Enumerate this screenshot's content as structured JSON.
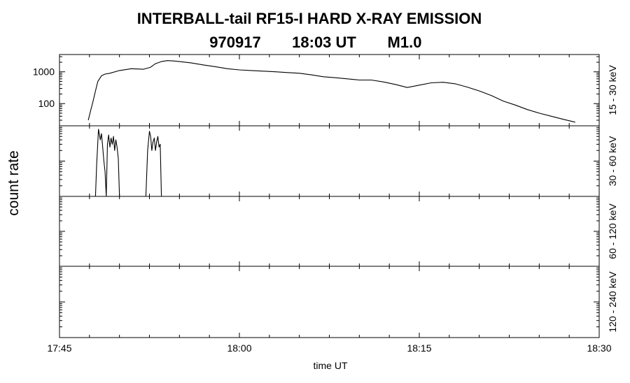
{
  "chart_data": {
    "type": "line",
    "title": "INTERBALL-tail  RF15-I  HARD  X-RAY  EMISSION",
    "subtitle": {
      "date": "970917",
      "time": "18:03 UT",
      "class": "M1.0"
    },
    "xlabel": "time UT",
    "ylabel": "count rate",
    "x_ticks": [
      "17:45",
      "18:00",
      "18:15",
      "18:30"
    ],
    "x_range_minutes": [
      0,
      45
    ],
    "x_minor_tick_minutes": 2.5,
    "panels": [
      {
        "band": "15 - 30 keV",
        "scale": "log",
        "y_ticks": [
          100,
          1000
        ],
        "y_tick_labels": [
          "100",
          "1000"
        ],
        "ylim": [
          20,
          3500
        ],
        "series": [
          {
            "x_minutes": [
              2.4,
              2.6,
              2.8,
              3.0,
              3.2,
              3.5,
              3.8,
              4.2,
              5.0,
              6.0,
              7.0,
              7.6,
              8.0,
              8.5,
              9.0,
              9.5,
              10.0,
              11.0,
              12.0,
              13.0,
              14.0,
              15.0,
              16.0,
              17.0,
              18.0,
              19.0,
              20.0,
              21.0,
              22.0,
              23.0,
              24.0,
              25.0,
              26.0,
              27.0,
              28.0,
              29.0,
              30.0,
              31.0,
              32.0,
              33.0,
              34.0,
              35.0,
              36.0,
              37.0,
              38.0,
              39.0,
              40.0,
              41.0,
              42.0,
              43.0
            ],
            "values": [
              30,
              60,
              120,
              250,
              500,
              750,
              850,
              900,
              1100,
              1250,
              1200,
              1400,
              1800,
              2100,
              2250,
              2200,
              2100,
              1900,
              1650,
              1450,
              1250,
              1150,
              1100,
              1050,
              1000,
              950,
              900,
              800,
              700,
              650,
              600,
              550,
              550,
              480,
              400,
              320,
              380,
              450,
              470,
              420,
              330,
              250,
              180,
              120,
              90,
              65,
              50,
              40,
              32,
              26
            ]
          }
        ]
      },
      {
        "band": "30 - 60 keV",
        "scale": "log",
        "y_ticks": [],
        "y_tick_labels": [],
        "ylim": [
          1,
          100
        ],
        "series": [
          {
            "x_minutes": [
              3.0,
              3.1,
              3.25,
              3.4,
              3.5,
              3.6,
              3.7,
              3.8,
              3.9,
              4.0,
              4.1,
              4.2,
              4.3,
              4.4,
              4.5,
              4.6,
              4.7,
              4.8,
              4.9,
              5.0
            ],
            "values": [
              1,
              8,
              80,
              40,
              60,
              25,
              10,
              5,
              1,
              30,
              55,
              25,
              45,
              30,
              50,
              20,
              40,
              25,
              12,
              1
            ]
          },
          {
            "x_minutes": [
              7.2,
              7.35,
              7.5,
              7.6,
              7.7,
              7.8,
              7.9,
              8.0,
              8.1,
              8.2,
              8.3,
              8.4,
              8.5
            ],
            "values": [
              1,
              20,
              70,
              50,
              20,
              35,
              45,
              20,
              35,
              50,
              25,
              30,
              1
            ]
          }
        ]
      },
      {
        "band": "60 - 120 keV",
        "scale": "log",
        "y_ticks": [],
        "y_tick_labels": [],
        "ylim": [
          1,
          100
        ],
        "series": []
      },
      {
        "band": "120 - 240 keV",
        "scale": "log",
        "y_ticks": [],
        "y_tick_labels": [],
        "ylim": [
          1,
          100
        ],
        "series": []
      }
    ]
  }
}
